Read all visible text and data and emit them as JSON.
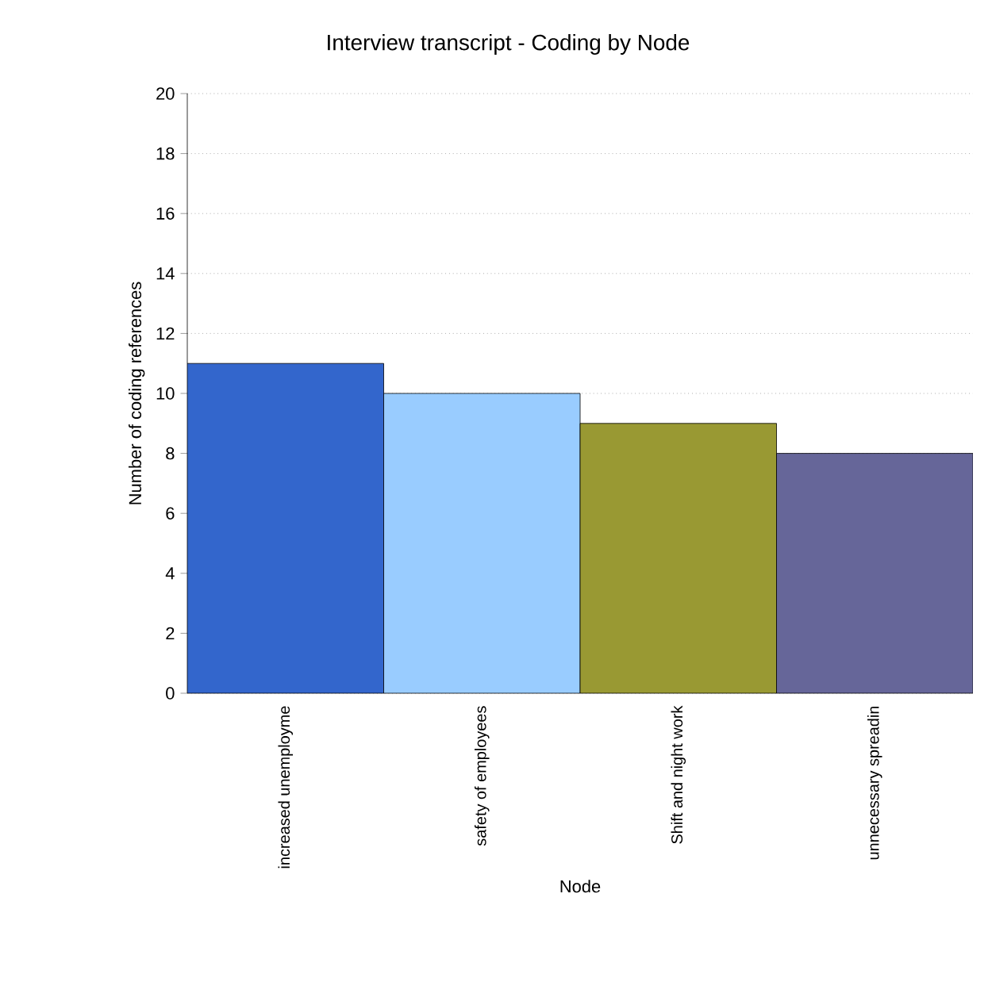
{
  "chart_data": {
    "type": "bar",
    "title": "Interview transcript - Coding by Node",
    "xlabel": "Node",
    "ylabel": "Number of coding references",
    "categories": [
      "increased unemployme",
      "safety of employees",
      "Shift and night work",
      "unnecessary spreadin"
    ],
    "values": [
      11,
      10,
      9,
      8
    ],
    "colors": [
      "#3366cc",
      "#99ccff",
      "#999933",
      "#666699"
    ],
    "ylim": [
      0,
      20
    ],
    "yticks": [
      0,
      2,
      4,
      6,
      8,
      10,
      12,
      14,
      16,
      18,
      20
    ],
    "grid": "y"
  }
}
